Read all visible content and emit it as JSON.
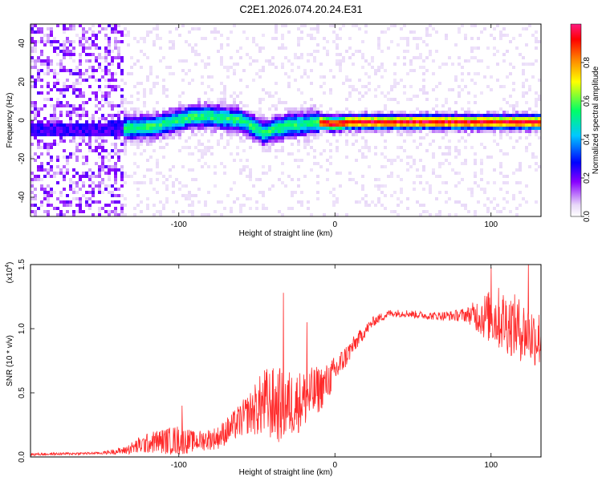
{
  "title": "C2E1.2026.074.20.24.E31",
  "chart_data": [
    {
      "type": "heatmap",
      "xlabel": "Height of straight line (km)",
      "ylabel": "Frequency (Hz)",
      "xlim": [
        -195,
        132
      ],
      "ylim": [
        -50,
        50
      ],
      "xticks": [
        -100,
        0,
        100
      ],
      "yticks": [
        40,
        20,
        0,
        -20,
        -40
      ],
      "colorbar": {
        "label": "Normalized spectral amplitude",
        "range": [
          0,
          1
        ],
        "ticks": [
          "0.0",
          "0.2",
          "0.4",
          "0.6",
          "0.8"
        ],
        "colors": [
          "#ffffff",
          "#e8d8f8",
          "#8800ff",
          "#0000ff",
          "#00c8ff",
          "#00ff66",
          "#ffff00",
          "#ff7f00",
          "#ff0000",
          "#ff1a80"
        ]
      },
      "ridge_line": {
        "description_free_values": true,
        "x": [
          -195,
          -150,
          -130,
          -115,
          -100,
          -90,
          -80,
          -70,
          -60,
          -55,
          -45,
          -40,
          -35,
          -30,
          -20,
          -10,
          0,
          10,
          40,
          80,
          90,
          100,
          110,
          120,
          132
        ],
        "y": [
          -5,
          -5,
          -4,
          -3,
          0,
          2,
          2,
          1,
          0,
          -2,
          -7,
          -5,
          -4,
          -3,
          -2,
          -1,
          -2,
          -1,
          -1,
          -1,
          -1,
          -1,
          -1,
          -1,
          -1
        ]
      },
      "noise_region_x": [
        -195,
        -135
      ]
    },
    {
      "type": "line",
      "xlabel": "Height of straight line (km)",
      "ylabel": "SNR (10 * v/v)",
      "multiplier": "(x10",
      "multiplier_exp": "4",
      "multiplier_close": ")",
      "xlim": [
        -195,
        132
      ],
      "ylim": [
        0,
        1.5
      ],
      "xticks": [
        -100,
        0,
        100
      ],
      "yticks": [
        0.0,
        0.5,
        1.0,
        1.5
      ],
      "ytick_labels": [
        "0.0",
        "0.5",
        "1.0",
        "1.5"
      ],
      "series_color": "#ff2a2a",
      "envelope": {
        "x": [
          -195,
          -150,
          -135,
          -125,
          -115,
          -100,
          -90,
          -75,
          -65,
          -55,
          -45,
          -35,
          -25,
          -15,
          -5,
          5,
          15,
          25,
          35,
          45,
          60,
          75,
          85,
          95,
          105,
          115,
          125,
          132
        ],
        "base": [
          0.02,
          0.03,
          0.05,
          0.09,
          0.12,
          0.13,
          0.12,
          0.15,
          0.24,
          0.34,
          0.42,
          0.4,
          0.42,
          0.48,
          0.58,
          0.75,
          0.92,
          1.06,
          1.12,
          1.12,
          1.1,
          1.1,
          1.11,
          1.1,
          1.08,
          1.02,
          0.95,
          0.92
        ],
        "amp": [
          0.01,
          0.01,
          0.03,
          0.07,
          0.09,
          0.12,
          0.08,
          0.09,
          0.12,
          0.16,
          0.28,
          0.3,
          0.25,
          0.22,
          0.15,
          0.1,
          0.06,
          0.04,
          0.03,
          0.03,
          0.03,
          0.04,
          0.06,
          0.18,
          0.25,
          0.25,
          0.25,
          0.22
        ]
      },
      "peaks": [
        {
          "x": -98,
          "y": 0.4
        },
        {
          "x": -33,
          "y": 1.28
        },
        {
          "x": -18,
          "y": 1.05
        },
        {
          "x": 100,
          "y": 1.48
        },
        {
          "x": 124,
          "y": 1.52
        }
      ]
    }
  ]
}
